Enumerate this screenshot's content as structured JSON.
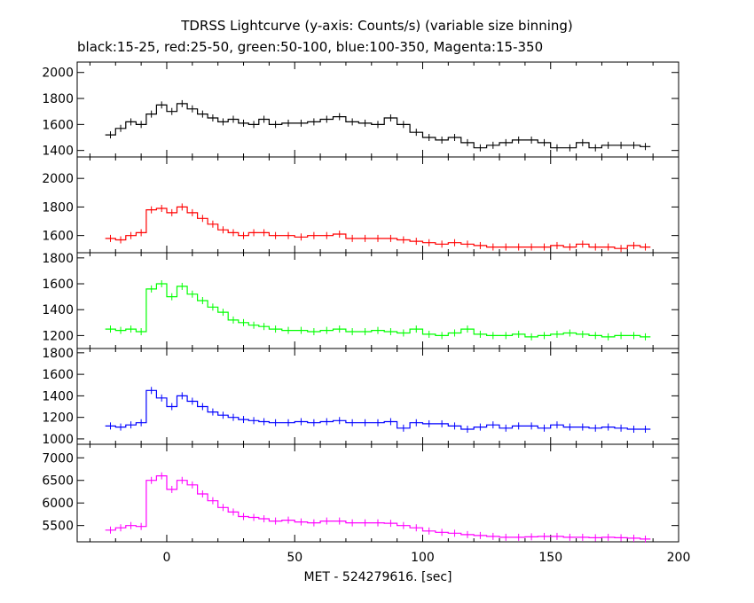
{
  "title": "TDRSS Lightcurve (y-axis: Counts/s) (variable size binning)",
  "subtitle": "black:15-25, red:25-50, green:50-100, blue:100-350, Magenta:15-350",
  "chart_data": {
    "type": "line",
    "title": "TDRSS Lightcurve (y-axis: Counts/s) (variable size binning)",
    "subtitle": "black:15-25, red:25-50, green:50-100, blue:100-350, Magenta:15-350",
    "xlabel": "MET - 524279616. [sec]",
    "xlim": [
      -35,
      200
    ],
    "xticks": [
      0,
      50,
      100,
      150,
      200
    ],
    "series": [
      {
        "name": "15-25",
        "color": "#000000",
        "ylim": [
          1350,
          2080
        ],
        "yticks": [
          1400,
          1600,
          1800,
          2000
        ],
        "x": [
          -24,
          -20,
          -16,
          -12,
          -8,
          -4,
          0,
          4,
          8,
          12,
          16,
          20,
          24,
          28,
          32,
          36,
          40,
          45,
          50,
          55,
          60,
          65,
          70,
          75,
          80,
          85,
          90,
          95,
          100,
          105,
          110,
          115,
          120,
          125,
          130,
          135,
          140,
          145,
          150,
          155,
          160,
          165,
          170,
          175,
          180,
          185
        ],
        "y": [
          1520,
          1570,
          1620,
          1600,
          1680,
          1750,
          1700,
          1760,
          1720,
          1680,
          1650,
          1620,
          1640,
          1610,
          1600,
          1640,
          1600,
          1610,
          1610,
          1620,
          1640,
          1660,
          1620,
          1610,
          1600,
          1650,
          1600,
          1540,
          1500,
          1480,
          1500,
          1460,
          1420,
          1440,
          1460,
          1480,
          1480,
          1460,
          1420,
          1420,
          1460,
          1420,
          1440,
          1440,
          1440,
          1430
        ]
      },
      {
        "name": "25-50",
        "color": "#ff0000",
        "ylim": [
          1480,
          2150
        ],
        "yticks": [
          1600,
          1800,
          2000
        ],
        "x": [
          -24,
          -20,
          -16,
          -12,
          -8,
          -4,
          0,
          4,
          8,
          12,
          16,
          20,
          24,
          28,
          32,
          36,
          40,
          45,
          50,
          55,
          60,
          65,
          70,
          75,
          80,
          85,
          90,
          95,
          100,
          105,
          110,
          115,
          120,
          125,
          130,
          135,
          140,
          145,
          150,
          155,
          160,
          165,
          170,
          175,
          180,
          185
        ],
        "y": [
          1580,
          1570,
          1600,
          1620,
          1780,
          1790,
          1760,
          1800,
          1760,
          1720,
          1680,
          1640,
          1620,
          1600,
          1620,
          1620,
          1600,
          1600,
          1590,
          1600,
          1600,
          1610,
          1580,
          1580,
          1580,
          1580,
          1570,
          1560,
          1550,
          1540,
          1550,
          1540,
          1530,
          1520,
          1520,
          1520,
          1520,
          1520,
          1530,
          1520,
          1540,
          1520,
          1520,
          1510,
          1530,
          1520
        ]
      },
      {
        "name": "50-100",
        "color": "#00ff00",
        "ylim": [
          1100,
          1840
        ],
        "yticks": [
          1200,
          1400,
          1600,
          1800
        ],
        "x": [
          -24,
          -20,
          -16,
          -12,
          -8,
          -4,
          0,
          4,
          8,
          12,
          16,
          20,
          24,
          28,
          32,
          36,
          40,
          45,
          50,
          55,
          60,
          65,
          70,
          75,
          80,
          85,
          90,
          95,
          100,
          105,
          110,
          115,
          120,
          125,
          130,
          135,
          140,
          145,
          150,
          155,
          160,
          165,
          170,
          175,
          180,
          185
        ],
        "y": [
          1250,
          1240,
          1250,
          1230,
          1560,
          1600,
          1500,
          1580,
          1520,
          1470,
          1420,
          1380,
          1320,
          1300,
          1280,
          1270,
          1250,
          1240,
          1240,
          1230,
          1240,
          1250,
          1230,
          1230,
          1240,
          1230,
          1220,
          1250,
          1210,
          1200,
          1220,
          1250,
          1210,
          1200,
          1200,
          1210,
          1190,
          1200,
          1210,
          1220,
          1210,
          1200,
          1190,
          1200,
          1200,
          1190
        ]
      },
      {
        "name": "100-350",
        "color": "#0000ff",
        "ylim": [
          950,
          1840
        ],
        "yticks": [
          1000,
          1200,
          1400,
          1600,
          1800
        ],
        "x": [
          -24,
          -20,
          -16,
          -12,
          -8,
          -4,
          0,
          4,
          8,
          12,
          16,
          20,
          24,
          28,
          32,
          36,
          40,
          45,
          50,
          55,
          60,
          65,
          70,
          75,
          80,
          85,
          90,
          95,
          100,
          105,
          110,
          115,
          120,
          125,
          130,
          135,
          140,
          145,
          150,
          155,
          160,
          165,
          170,
          175,
          180,
          185
        ],
        "y": [
          1120,
          1110,
          1130,
          1150,
          1450,
          1380,
          1300,
          1400,
          1350,
          1300,
          1250,
          1220,
          1200,
          1180,
          1170,
          1160,
          1150,
          1150,
          1160,
          1150,
          1160,
          1170,
          1150,
          1150,
          1150,
          1160,
          1100,
          1150,
          1140,
          1140,
          1120,
          1090,
          1110,
          1130,
          1100,
          1120,
          1120,
          1100,
          1130,
          1110,
          1110,
          1100,
          1110,
          1100,
          1090,
          1090
        ]
      },
      {
        "name": "15-350",
        "color": "#ff00ff",
        "ylim": [
          5140,
          7300
        ],
        "yticks": [
          5500,
          6000,
          6500,
          7000
        ],
        "x": [
          -24,
          -20,
          -16,
          -12,
          -8,
          -4,
          0,
          4,
          8,
          12,
          16,
          20,
          24,
          28,
          32,
          36,
          40,
          45,
          50,
          55,
          60,
          65,
          70,
          75,
          80,
          85,
          90,
          95,
          100,
          105,
          110,
          115,
          120,
          125,
          130,
          135,
          140,
          145,
          150,
          155,
          160,
          165,
          170,
          175,
          180,
          185
        ],
        "y": [
          5400,
          5450,
          5500,
          5480,
          6500,
          6600,
          6300,
          6500,
          6400,
          6200,
          6050,
          5900,
          5800,
          5700,
          5680,
          5650,
          5600,
          5620,
          5580,
          5560,
          5600,
          5600,
          5560,
          5560,
          5560,
          5550,
          5500,
          5450,
          5380,
          5350,
          5330,
          5300,
          5280,
          5260,
          5240,
          5240,
          5250,
          5260,
          5260,
          5240,
          5240,
          5230,
          5240,
          5230,
          5220,
          5200
        ]
      }
    ]
  }
}
